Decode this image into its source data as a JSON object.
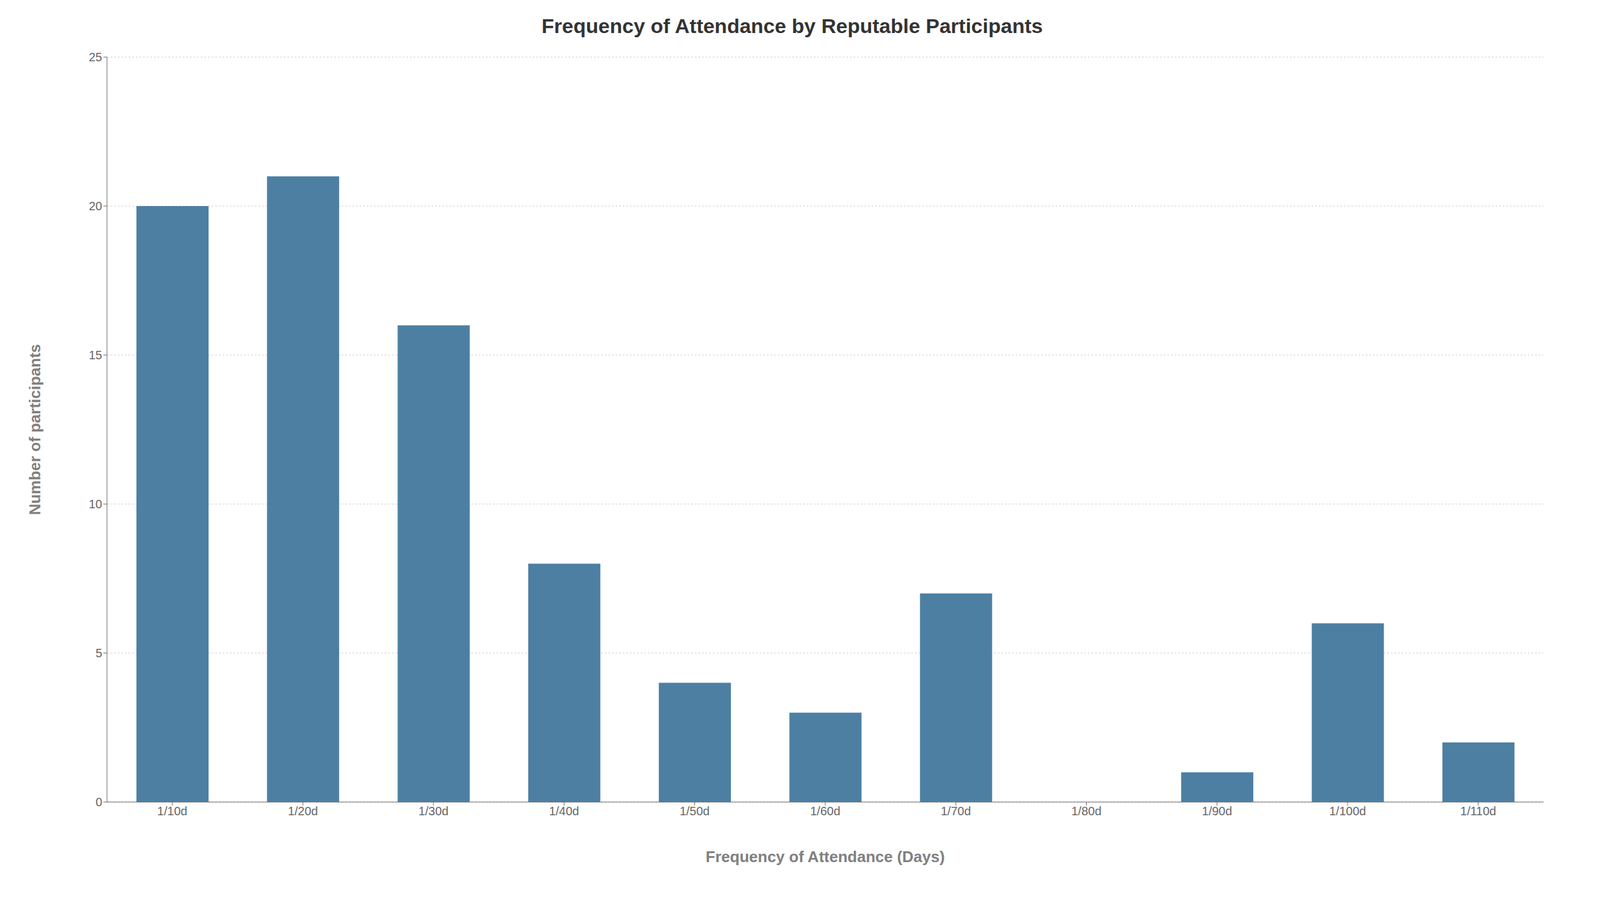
{
  "chart_data": {
    "type": "bar",
    "title": "Frequency of Attendance by Reputable Participants",
    "xlabel": "Frequency of Attendance (Days)",
    "ylabel": "Number of participants",
    "categories": [
      "1/10d",
      "1/20d",
      "1/30d",
      "1/40d",
      "1/50d",
      "1/60d",
      "1/70d",
      "1/80d",
      "1/90d",
      "1/100d",
      "1/110d"
    ],
    "values": [
      20,
      21,
      16,
      8,
      4,
      3,
      7,
      0,
      1,
      6,
      2
    ],
    "color": "#4d7fa3",
    "ylim": [
      0,
      25
    ],
    "yticks": [
      0,
      5,
      10,
      15,
      20,
      25
    ],
    "grid": true
  }
}
